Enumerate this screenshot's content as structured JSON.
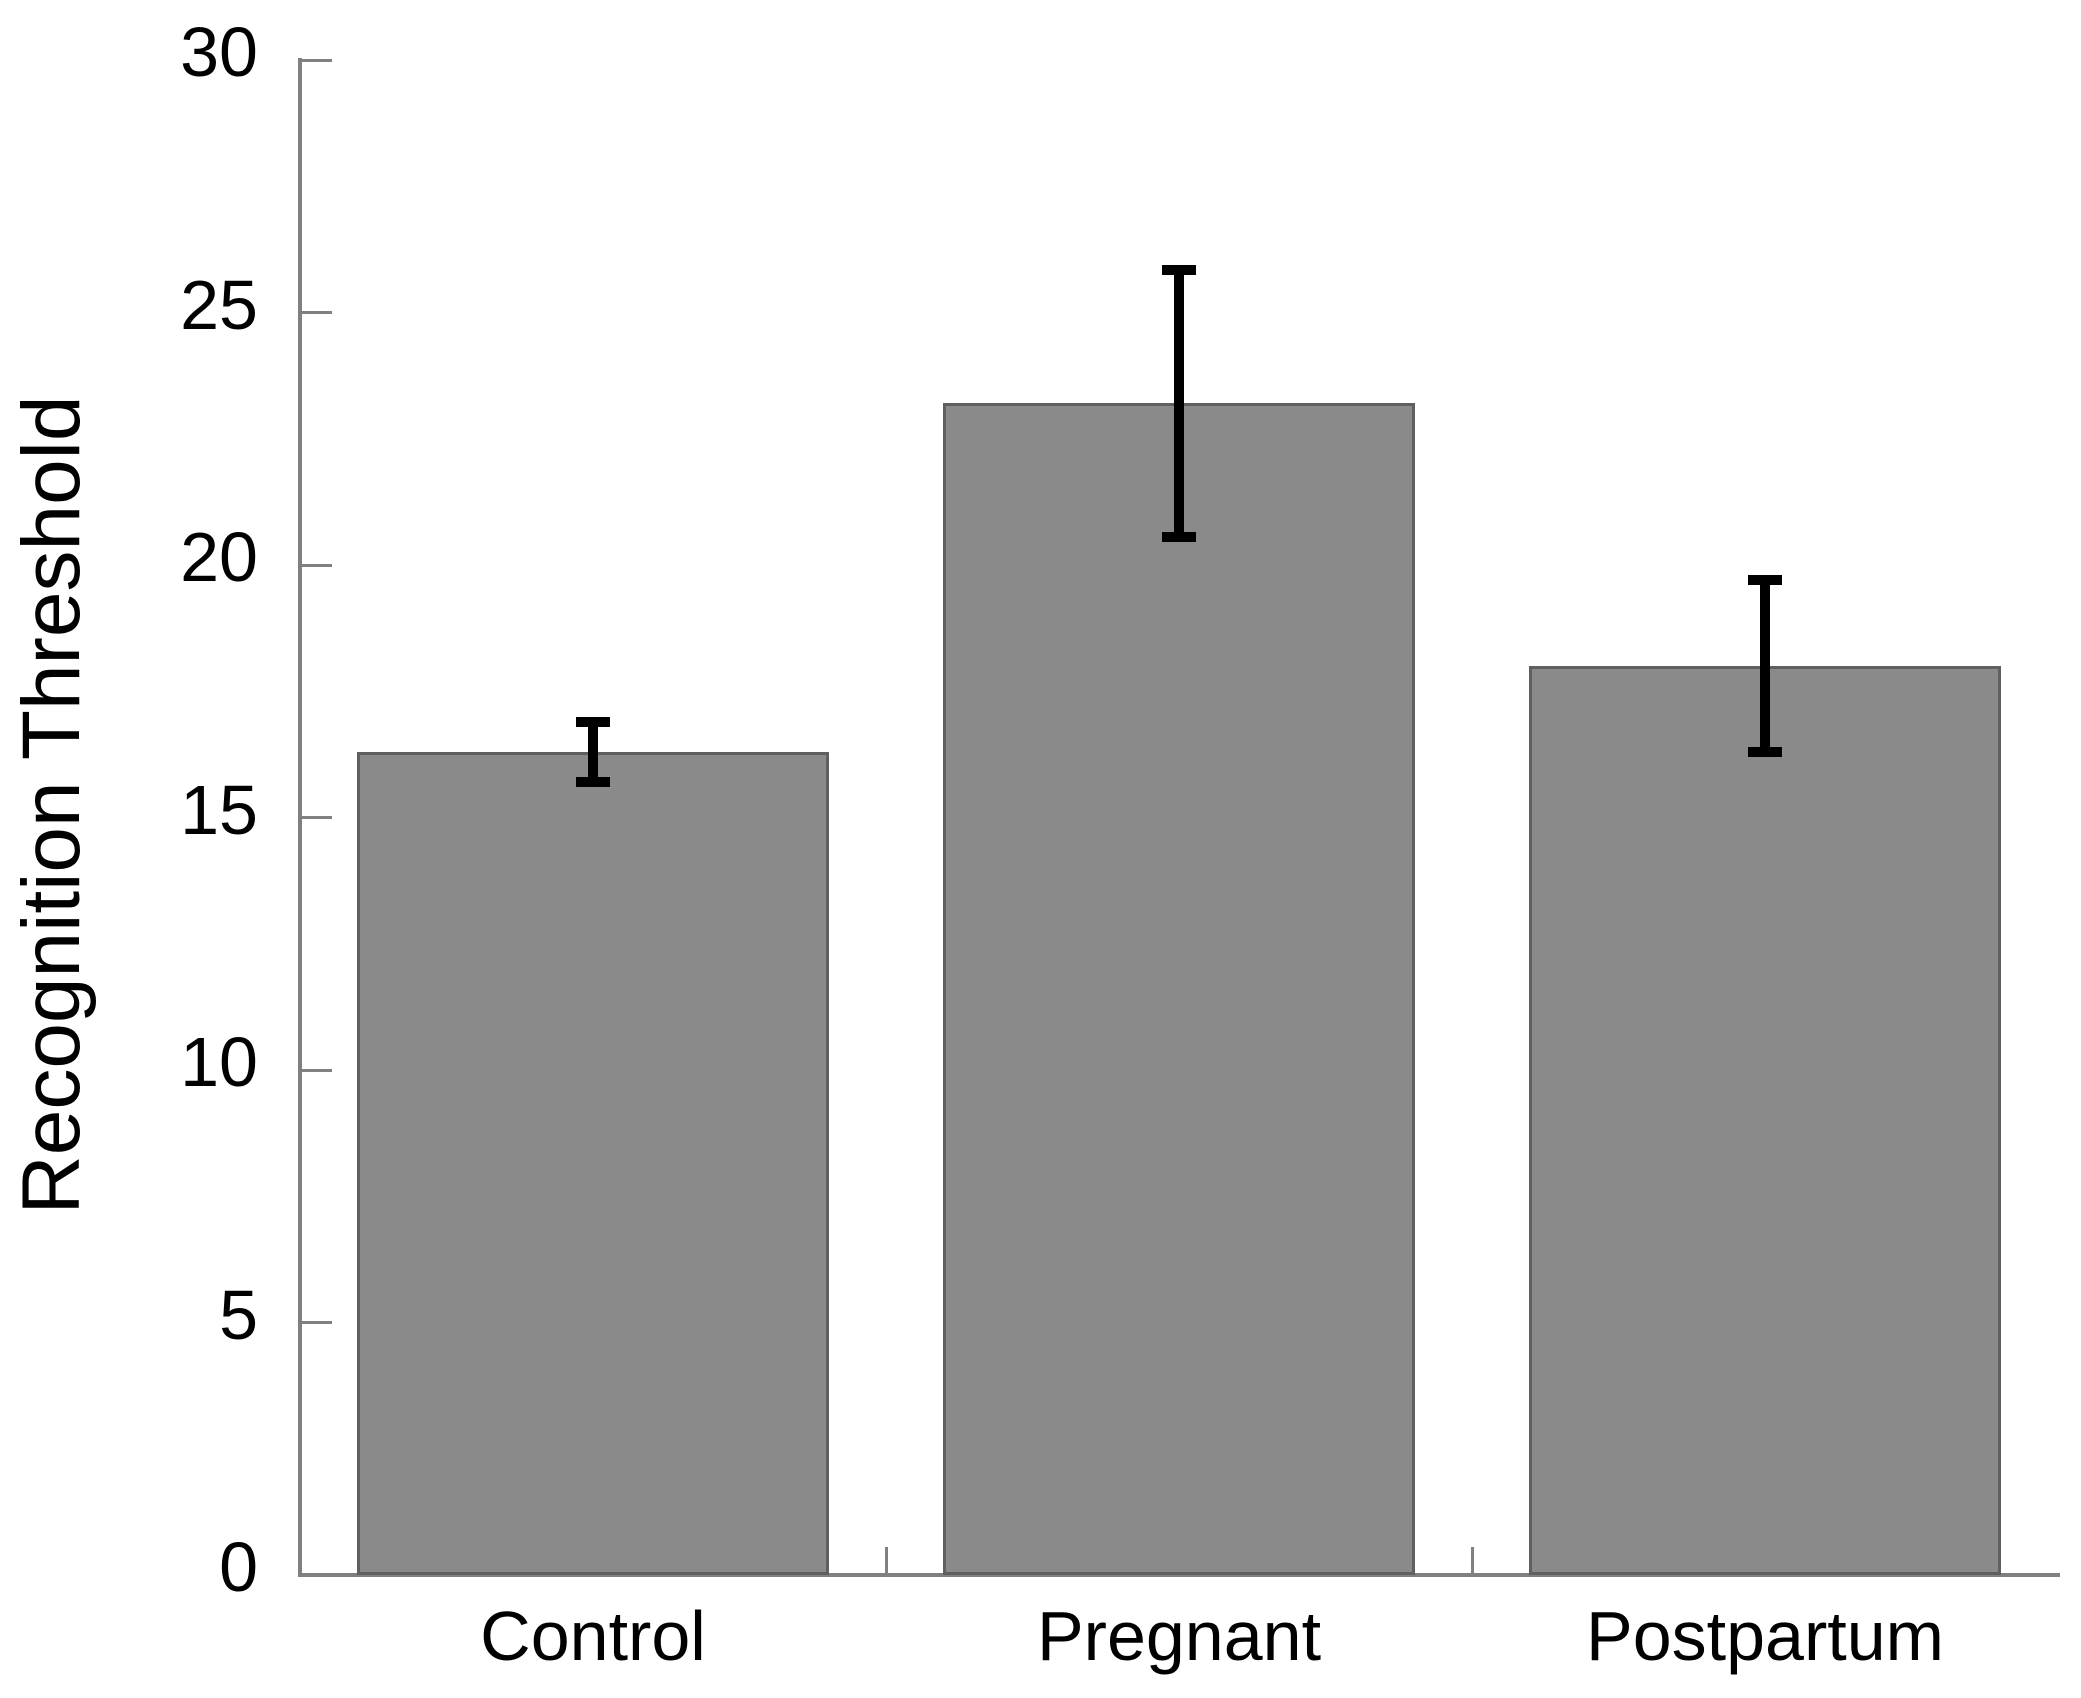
{
  "figure": {
    "background": "#ffffff"
  },
  "chart_data": {
    "type": "bar",
    "title": "",
    "xlabel": "",
    "ylabel": "Recognition Threshold",
    "categories": [
      "Control",
      "Pregnant",
      "Postpartum"
    ],
    "values": [
      16.3,
      23.2,
      18.0
    ],
    "errors": [
      0.6,
      2.65,
      1.7
    ],
    "error_bar_style": "symmetric-caps",
    "ylim": [
      0,
      30
    ],
    "yticks": [
      0,
      5,
      10,
      15,
      20,
      25,
      30
    ],
    "grid": false,
    "legend": false,
    "bar_color": "#8a8a8a",
    "bar_border_color": "#606060",
    "axis_color": "#808080",
    "error_bar_color": "#000000",
    "text_color": "#000000"
  }
}
